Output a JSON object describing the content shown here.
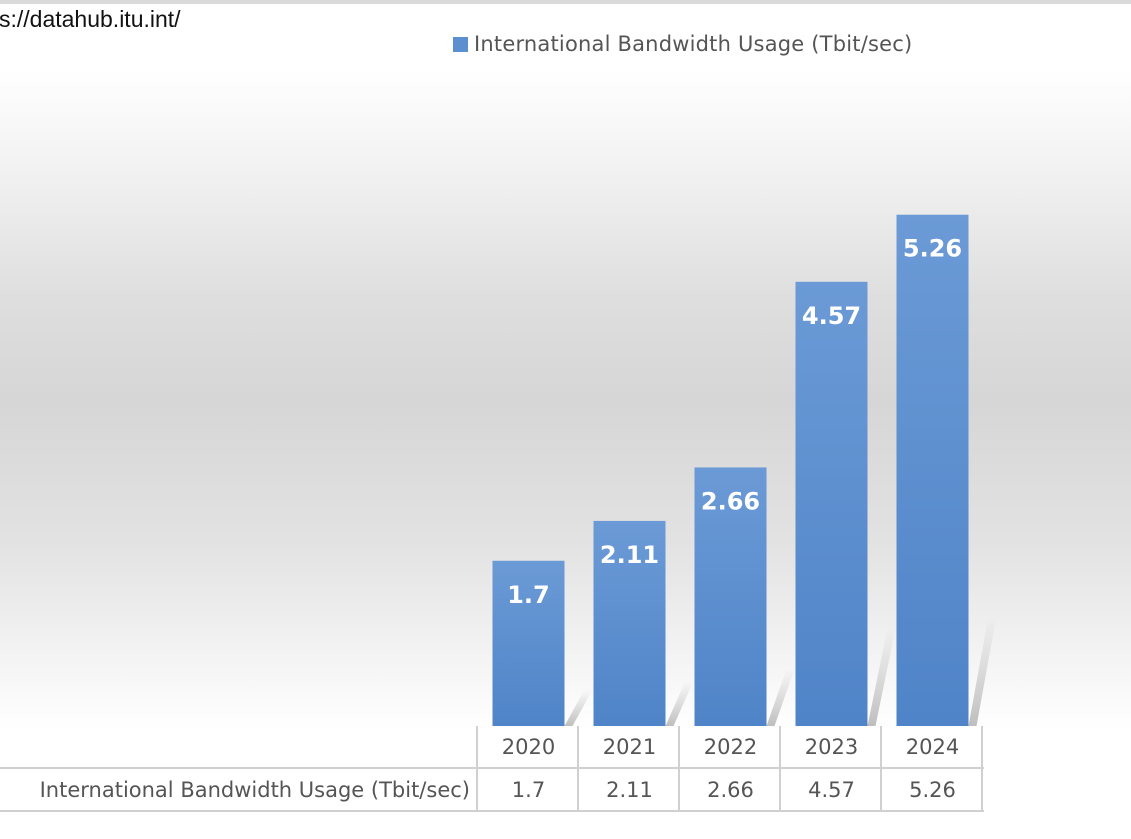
{
  "source": {
    "text": "s://datahub.itu.int/"
  },
  "legend": {
    "label": "International Bandwidth Usage  (Tbit/sec)",
    "color": "#5b8fd0"
  },
  "chart_data": {
    "type": "bar",
    "categories": [
      "2020",
      "2021",
      "2022",
      "2023",
      "2024"
    ],
    "series": [
      {
        "name": "International Bandwidth Usage  (Tbit/sec)",
        "values": [
          1.7,
          2.11,
          2.66,
          4.57,
          5.26
        ]
      }
    ],
    "data_labels": [
      "1.7",
      "2.11",
      "2.66",
      "4.57",
      "5.26"
    ],
    "data_table": {
      "row_label": "International Bandwidth Usage  (Tbit/sec)",
      "values": [
        "1.7",
        "2.11",
        "2.66",
        "4.57",
        "5.26"
      ]
    },
    "bar_color": "#5b8fd0",
    "legend_position": "top",
    "grid": false
  }
}
